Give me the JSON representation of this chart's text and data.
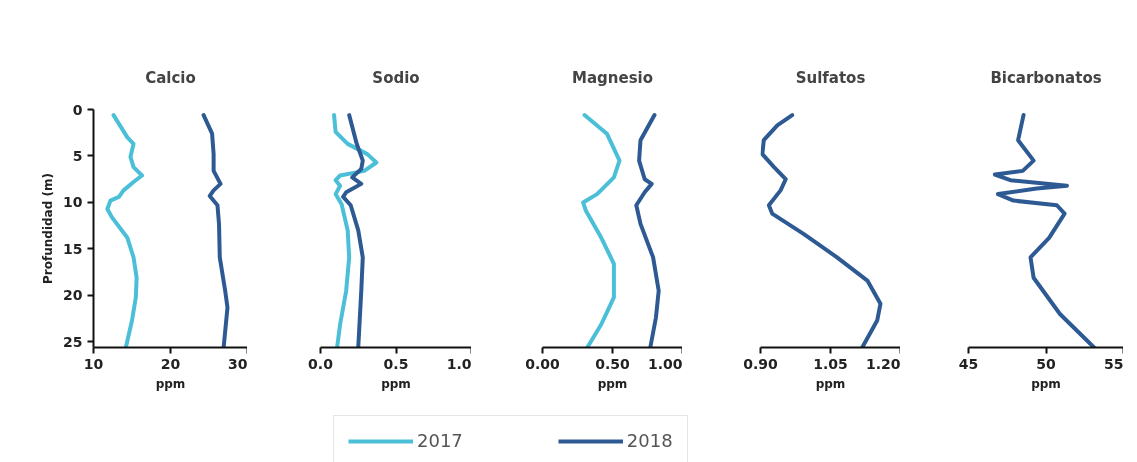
{
  "chart_data": [
    {
      "type": "line",
      "title": "Calcio",
      "xlabel": "ppm",
      "ylabel": "Profundidad (m)",
      "xlim": [
        10,
        30
      ],
      "xticks": [
        10,
        20,
        30
      ],
      "ylim": [
        25.6,
        0
      ],
      "yticks": [
        0,
        5,
        10,
        15,
        20,
        25
      ],
      "grid": false,
      "legend": "bottom",
      "series": [
        {
          "name": "2017",
          "color": "#4bbfd8",
          "x": [
            12.6,
            14.4,
            15.2,
            14.8,
            15.2,
            16.3,
            15.2,
            13.9,
            13.3,
            12.2,
            11.8,
            12.4,
            14.4,
            15.2,
            15.6,
            15.5,
            15.0,
            14.2
          ],
          "values": [
            0.6,
            3.0,
            3.7,
            5.1,
            6.2,
            7.1,
            7.8,
            8.7,
            9.4,
            9.8,
            10.7,
            11.6,
            13.8,
            15.9,
            18.1,
            20.2,
            22.7,
            25.6
          ]
        },
        {
          "name": "2018",
          "color": "#2e5a94",
          "x": [
            24.3,
            25.4,
            25.6,
            25.6,
            26.5,
            25.6,
            25.1,
            26.1,
            26.3,
            26.4,
            27.1,
            27.4,
            26.9
          ],
          "values": [
            0.6,
            2.6,
            4.8,
            6.6,
            8.0,
            8.7,
            9.3,
            10.3,
            12.3,
            15.9,
            19.5,
            21.3,
            25.6
          ]
        }
      ]
    },
    {
      "type": "line",
      "title": "Sodio",
      "xlabel": "ppm",
      "xlim": [
        0.0,
        1.0
      ],
      "xticks": [
        {
          "value": 0,
          "label": "0.0"
        },
        0.5,
        {
          "value": 1,
          "label": "1.0"
        }
      ],
      "ylim": [
        25.6,
        0
      ],
      "tick_labels": "x",
      "grid": false,
      "series": [
        {
          "name": "2017",
          "color": "#4bbfd8",
          "x": [
            0.09,
            0.1,
            0.18,
            0.31,
            0.37,
            0.29,
            0.13,
            0.1,
            0.13,
            0.1,
            0.14,
            0.18,
            0.19,
            0.17,
            0.13,
            0.11
          ],
          "values": [
            0.6,
            2.4,
            3.7,
            4.8,
            5.7,
            6.6,
            7.1,
            7.6,
            8.2,
            9.1,
            10.2,
            13.0,
            15.9,
            19.5,
            23.1,
            25.6
          ]
        },
        {
          "name": "2018",
          "color": "#2e5a94",
          "x": [
            0.19,
            0.24,
            0.28,
            0.27,
            0.21,
            0.27,
            0.17,
            0.15,
            0.2,
            0.25,
            0.28,
            0.27,
            0.25
          ],
          "values": [
            0.6,
            3.7,
            5.5,
            6.4,
            7.3,
            8.0,
            8.9,
            9.4,
            10.3,
            13.0,
            15.9,
            19.5,
            25.6
          ]
        }
      ]
    },
    {
      "type": "line",
      "title": "Magnesio",
      "xlabel": "ppm",
      "xlim": [
        0.0,
        1.0
      ],
      "xticks": [
        {
          "value": 0,
          "label": "0.00"
        },
        {
          "value": 0.5,
          "label": "0.50"
        },
        {
          "value": 1,
          "label": "1.00"
        }
      ],
      "ylim": [
        25.6,
        0
      ],
      "tick_labels": "x",
      "grid": false,
      "series": [
        {
          "name": "2017",
          "color": "#4bbfd8",
          "x": [
            0.3,
            0.46,
            0.55,
            0.51,
            0.39,
            0.29,
            0.31,
            0.42,
            0.51,
            0.51,
            0.42,
            0.32
          ],
          "values": [
            0.6,
            2.6,
            5.5,
            7.3,
            9.1,
            10.0,
            10.9,
            13.8,
            16.6,
            20.2,
            23.1,
            25.6
          ]
        },
        {
          "name": "2018",
          "color": "#2e5a94",
          "x": [
            0.8,
            0.7,
            0.69,
            0.73,
            0.78,
            0.73,
            0.67,
            0.7,
            0.79,
            0.83,
            0.81,
            0.77
          ],
          "values": [
            0.6,
            3.3,
            5.5,
            7.5,
            8.0,
            8.9,
            10.3,
            12.3,
            15.9,
            19.5,
            22.4,
            25.6
          ]
        }
      ]
    },
    {
      "type": "line",
      "title": "Sulfatos",
      "xlabel": "ppm",
      "xlim": [
        0.9,
        1.2
      ],
      "xticks": [
        {
          "value": 0.9,
          "label": "0.90"
        },
        1.05,
        {
          "value": 1.2,
          "label": "1.20"
        }
      ],
      "ylim": [
        25.6,
        0
      ],
      "tick_labels": "x",
      "grid": false,
      "series": [
        {
          "color": "#2e5a94",
          "x": [
            0.968,
            0.936,
            0.907,
            0.904,
            0.929,
            0.954,
            0.943,
            0.918,
            0.925,
            0.993,
            1.064,
            1.129,
            1.157,
            1.15,
            1.118
          ],
          "values": [
            0.6,
            1.7,
            3.3,
            4.8,
            6.2,
            7.5,
            8.7,
            10.3,
            11.2,
            13.4,
            15.9,
            18.4,
            20.9,
            22.7,
            25.6
          ]
        }
      ]
    },
    {
      "type": "line",
      "title": "Bicarbonatos",
      "xlabel": "ppm",
      "xlim": [
        45,
        55
      ],
      "xticks": [
        45,
        50,
        55
      ],
      "ylim": [
        25.6,
        0
      ],
      "tick_labels": "x",
      "grid": false,
      "series": [
        {
          "color": "#2e5a94",
          "x": [
            48.55,
            48.2,
            49.2,
            48.5,
            46.7,
            47.7,
            51.35,
            49.4,
            46.9,
            47.9,
            50.7,
            51.2,
            50.2,
            49.0,
            49.2,
            50.9,
            53.1
          ],
          "values": [
            0.6,
            3.3,
            5.5,
            6.6,
            7.0,
            7.6,
            8.2,
            8.5,
            9.1,
            9.8,
            10.3,
            11.2,
            13.8,
            15.9,
            18.1,
            22.0,
            25.6
          ]
        }
      ]
    }
  ]
}
